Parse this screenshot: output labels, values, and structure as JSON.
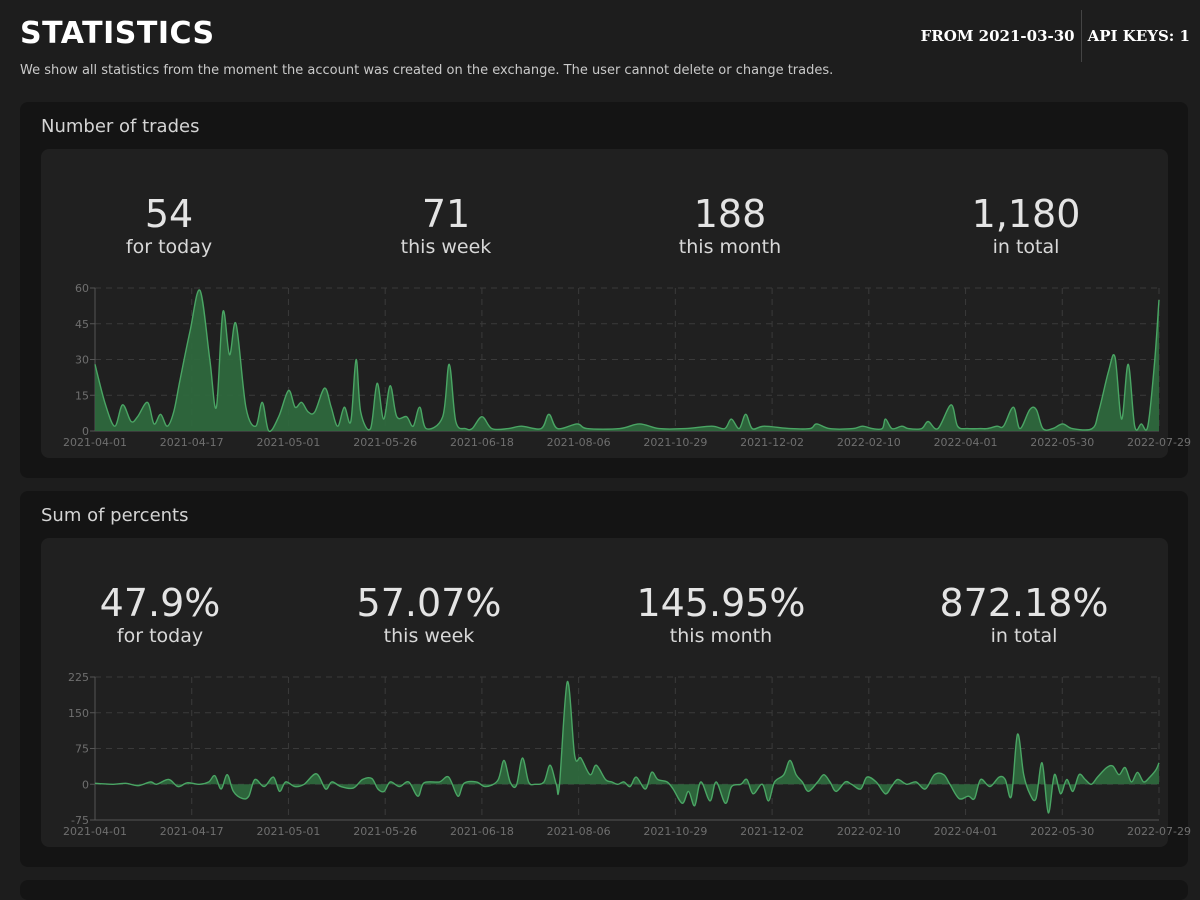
{
  "page": {
    "title": "STATISTICS",
    "subtitle": "We show all statistics from the moment the account was created on the exchange. The user cannot delete or change trades.",
    "from": "FROM 2021-03-30",
    "api_keys": "API KEYS: 1"
  },
  "colors": {
    "accent": "#4aa564",
    "fill": "#2f6b3e",
    "grid": "#3a3a3a"
  },
  "trades": {
    "title": "Number of trades",
    "stats": [
      {
        "value": "54",
        "label": "for today"
      },
      {
        "value": "71",
        "label": "this week"
      },
      {
        "value": "188",
        "label": "this month"
      },
      {
        "value": "1,180",
        "label": "in total"
      }
    ]
  },
  "percents": {
    "title": "Sum of percents",
    "stats": [
      {
        "value": "47.9%",
        "label": "for today"
      },
      {
        "value": "57.07%",
        "label": "this week"
      },
      {
        "value": "145.95%",
        "label": "this month"
      },
      {
        "value": "872.18%",
        "label": "in total"
      }
    ]
  },
  "chart_data": [
    {
      "type": "area",
      "title": "Number of trades",
      "x_labels": [
        "2021-04-01",
        "2021-04-17",
        "2021-05-01",
        "2021-05-26",
        "2021-06-18",
        "2021-08-06",
        "2021-10-29",
        "2021-12-02",
        "2022-02-10",
        "2022-04-01",
        "2022-05-30",
        "2022-07-29"
      ],
      "y_ticks": [
        0,
        15,
        30,
        45,
        60
      ],
      "ylim": [
        0,
        60
      ],
      "grid": true,
      "series": [
        {
          "name": "trades",
          "points": [
            [
              0,
              28
            ],
            [
              0.15,
              12
            ],
            [
              0.3,
              2
            ],
            [
              0.42,
              11
            ],
            [
              0.55,
              4
            ],
            [
              0.65,
              6
            ],
            [
              0.8,
              12
            ],
            [
              0.9,
              3
            ],
            [
              1.0,
              7
            ],
            [
              1.1,
              2
            ],
            [
              1.2,
              8
            ],
            [
              1.3,
              22
            ],
            [
              1.45,
              42
            ],
            [
              1.6,
              59
            ],
            [
              1.75,
              30
            ],
            [
              1.85,
              10
            ],
            [
              1.95,
              50
            ],
            [
              2.05,
              32
            ],
            [
              2.15,
              45
            ],
            [
              2.3,
              10
            ],
            [
              2.45,
              2
            ],
            [
              2.55,
              12
            ],
            [
              2.65,
              0
            ],
            [
              2.8,
              6
            ],
            [
              2.95,
              17
            ],
            [
              3.05,
              10
            ],
            [
              3.15,
              12
            ],
            [
              3.25,
              8
            ],
            [
              3.35,
              8
            ],
            [
              3.5,
              18
            ],
            [
              3.6,
              10
            ],
            [
              3.7,
              2
            ],
            [
              3.8,
              10
            ],
            [
              3.9,
              4
            ],
            [
              3.98,
              30
            ],
            [
              4.05,
              8
            ],
            [
              4.2,
              1
            ],
            [
              4.3,
              20
            ],
            [
              4.4,
              5
            ],
            [
              4.5,
              19
            ],
            [
              4.6,
              6
            ],
            [
              4.75,
              6
            ],
            [
              4.85,
              2
            ],
            [
              4.95,
              10
            ],
            [
              5.05,
              1
            ],
            [
              5.3,
              6
            ],
            [
              5.4,
              28
            ],
            [
              5.5,
              4
            ],
            [
              5.65,
              1
            ],
            [
              5.75,
              1
            ],
            [
              5.9,
              6
            ],
            [
              6.05,
              1
            ],
            [
              6.3,
              1
            ],
            [
              6.5,
              2
            ],
            [
              6.8,
              1
            ],
            [
              6.92,
              7
            ],
            [
              7.05,
              1
            ],
            [
              7.35,
              3
            ],
            [
              7.5,
              1
            ],
            [
              8.0,
              1
            ],
            [
              8.3,
              3
            ],
            [
              8.6,
              1
            ],
            [
              9.0,
              1
            ],
            [
              9.4,
              2
            ],
            [
              9.6,
              1
            ],
            [
              9.7,
              5
            ],
            [
              9.82,
              1
            ],
            [
              9.92,
              7
            ],
            [
              10.02,
              1
            ],
            [
              10.2,
              2
            ],
            [
              10.6,
              1
            ],
            [
              10.9,
              1
            ],
            [
              11.0,
              3
            ],
            [
              11.2,
              1
            ],
            [
              11.55,
              1
            ],
            [
              11.7,
              2
            ],
            [
              11.85,
              1
            ],
            [
              12.0,
              1
            ],
            [
              12.05,
              5
            ],
            [
              12.15,
              1
            ],
            [
              12.3,
              2
            ],
            [
              12.4,
              1
            ],
            [
              12.6,
              1
            ],
            [
              12.7,
              4
            ],
            [
              12.85,
              1
            ],
            [
              13.05,
              11
            ],
            [
              13.15,
              2
            ],
            [
              13.3,
              1
            ],
            [
              13.5,
              1
            ],
            [
              13.6,
              1
            ],
            [
              13.75,
              2
            ],
            [
              13.85,
              2
            ],
            [
              14.0,
              10
            ],
            [
              14.1,
              1
            ],
            [
              14.25,
              9
            ],
            [
              14.35,
              9
            ],
            [
              14.45,
              1
            ],
            [
              14.6,
              1
            ],
            [
              14.75,
              3
            ],
            [
              14.9,
              1
            ],
            [
              15.2,
              1
            ],
            [
              15.3,
              8
            ],
            [
              15.45,
              25
            ],
            [
              15.55,
              31
            ],
            [
              15.65,
              5
            ],
            [
              15.75,
              28
            ],
            [
              15.85,
              2
            ],
            [
              15.95,
              3
            ],
            [
              16.05,
              2
            ],
            [
              16.15,
              28
            ],
            [
              16.22,
              55
            ]
          ]
        }
      ]
    },
    {
      "type": "area",
      "title": "Sum of percents",
      "x_labels": [
        "2021-04-01",
        "2021-04-17",
        "2021-05-01",
        "2021-05-26",
        "2021-06-18",
        "2021-08-06",
        "2021-10-29",
        "2021-12-02",
        "2022-02-10",
        "2022-04-01",
        "2022-05-30",
        "2022-07-29"
      ],
      "y_ticks": [
        -75,
        0,
        75,
        150,
        225
      ],
      "ylim": [
        -75,
        225
      ],
      "grid": true,
      "series": [
        {
          "name": "percents",
          "points": [
            [
              0,
              2
            ],
            [
              0.3,
              0
            ],
            [
              0.5,
              2
            ],
            [
              0.7,
              -3
            ],
            [
              0.9,
              5
            ],
            [
              1.0,
              0
            ],
            [
              1.2,
              10
            ],
            [
              1.35,
              -5
            ],
            [
              1.5,
              3
            ],
            [
              1.7,
              0
            ],
            [
              1.85,
              5
            ],
            [
              1.95,
              18
            ],
            [
              2.05,
              -10
            ],
            [
              2.15,
              20
            ],
            [
              2.25,
              -15
            ],
            [
              2.4,
              -30
            ],
            [
              2.5,
              -25
            ],
            [
              2.6,
              10
            ],
            [
              2.75,
              -5
            ],
            [
              2.9,
              15
            ],
            [
              3.0,
              -15
            ],
            [
              3.1,
              5
            ],
            [
              3.25,
              -5
            ],
            [
              3.4,
              0
            ],
            [
              3.6,
              22
            ],
            [
              3.75,
              -10
            ],
            [
              3.85,
              5
            ],
            [
              4.0,
              -5
            ],
            [
              4.2,
              -8
            ],
            [
              4.35,
              10
            ],
            [
              4.5,
              12
            ],
            [
              4.6,
              -10
            ],
            [
              4.7,
              -15
            ],
            [
              4.8,
              5
            ],
            [
              4.95,
              -5
            ],
            [
              5.1,
              5
            ],
            [
              5.25,
              -25
            ],
            [
              5.35,
              3
            ],
            [
              5.6,
              5
            ],
            [
              5.75,
              15
            ],
            [
              5.9,
              -25
            ],
            [
              6.0,
              2
            ],
            [
              6.2,
              5
            ],
            [
              6.35,
              -5
            ],
            [
              6.55,
              8
            ],
            [
              6.65,
              50
            ],
            [
              6.75,
              5
            ],
            [
              6.85,
              -3
            ],
            [
              6.95,
              55
            ],
            [
              7.05,
              5
            ],
            [
              7.15,
              0
            ],
            [
              7.3,
              5
            ],
            [
              7.4,
              40
            ],
            [
              7.5,
              0
            ],
            [
              7.55,
              -5
            ],
            [
              7.68,
              215
            ],
            [
              7.8,
              60
            ],
            [
              7.9,
              55
            ],
            [
              8.05,
              20
            ],
            [
              8.15,
              40
            ],
            [
              8.3,
              10
            ],
            [
              8.4,
              5
            ],
            [
              8.5,
              0
            ],
            [
              8.6,
              5
            ],
            [
              8.7,
              -5
            ],
            [
              8.8,
              15
            ],
            [
              8.95,
              -10
            ],
            [
              9.05,
              25
            ],
            [
              9.15,
              10
            ],
            [
              9.3,
              5
            ],
            [
              9.4,
              -10
            ],
            [
              9.55,
              -40
            ],
            [
              9.65,
              -15
            ],
            [
              9.75,
              -45
            ],
            [
              9.85,
              5
            ],
            [
              10.0,
              -35
            ],
            [
              10.1,
              5
            ],
            [
              10.25,
              -40
            ],
            [
              10.35,
              -5
            ],
            [
              10.5,
              0
            ],
            [
              10.6,
              10
            ],
            [
              10.7,
              -20
            ],
            [
              10.85,
              0
            ],
            [
              10.95,
              -35
            ],
            [
              11.05,
              5
            ],
            [
              11.2,
              20
            ],
            [
              11.3,
              50
            ],
            [
              11.4,
              20
            ],
            [
              11.5,
              5
            ],
            [
              11.6,
              -15
            ],
            [
              11.75,
              5
            ],
            [
              11.85,
              20
            ],
            [
              11.95,
              5
            ],
            [
              12.05,
              -15
            ],
            [
              12.2,
              5
            ],
            [
              12.3,
              0
            ],
            [
              12.45,
              -10
            ],
            [
              12.55,
              15
            ],
            [
              12.7,
              5
            ],
            [
              12.85,
              -20
            ],
            [
              12.95,
              -5
            ],
            [
              13.05,
              10
            ],
            [
              13.2,
              0
            ],
            [
              13.35,
              5
            ],
            [
              13.5,
              -10
            ],
            [
              13.65,
              20
            ],
            [
              13.8,
              20
            ],
            [
              13.9,
              0
            ],
            [
              14.05,
              -30
            ],
            [
              14.2,
              -25
            ],
            [
              14.3,
              -30
            ],
            [
              14.4,
              10
            ],
            [
              14.55,
              -5
            ],
            [
              14.7,
              15
            ],
            [
              14.8,
              10
            ],
            [
              14.9,
              -25
            ],
            [
              15.0,
              105
            ],
            [
              15.1,
              20
            ],
            [
              15.2,
              -20
            ],
            [
              15.3,
              -30
            ],
            [
              15.4,
              45
            ],
            [
              15.5,
              -60
            ],
            [
              15.6,
              20
            ],
            [
              15.7,
              -20
            ],
            [
              15.8,
              10
            ],
            [
              15.9,
              -15
            ],
            [
              16.0,
              20
            ],
            [
              16.1,
              10
            ],
            [
              16.2,
              0
            ],
            [
              16.3,
              15
            ],
            [
              16.45,
              35
            ],
            [
              16.55,
              38
            ],
            [
              16.65,
              20
            ],
            [
              16.75,
              35
            ],
            [
              16.85,
              5
            ],
            [
              16.95,
              25
            ],
            [
              17.05,
              5
            ],
            [
              17.15,
              15
            ],
            [
              17.25,
              30
            ],
            [
              17.3,
              45
            ]
          ]
        }
      ]
    }
  ]
}
